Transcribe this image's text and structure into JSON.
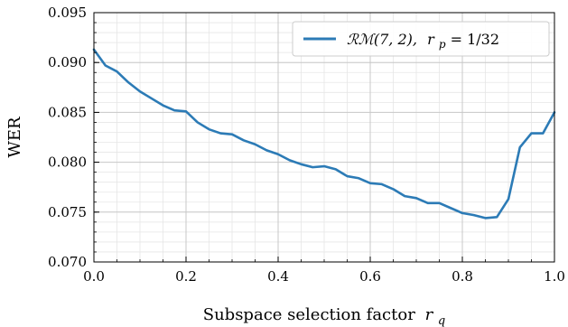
{
  "chart_data": {
    "type": "line",
    "title": "",
    "xlabel": "Subspace selection factor",
    "xlabel_var": "r",
    "xlabel_sub": "q",
    "ylabel": "WER",
    "xlim": [
      0.0,
      1.0
    ],
    "ylim": [
      0.07,
      0.095
    ],
    "xticks": [
      0.0,
      0.2,
      0.4,
      0.6,
      0.8,
      1.0
    ],
    "xtick_labels": [
      "0.0",
      "0.2",
      "0.4",
      "0.6",
      "0.8",
      "1.0"
    ],
    "yticks": [
      0.07,
      0.075,
      0.08,
      0.085,
      0.09,
      0.095
    ],
    "ytick_labels": [
      "0.070",
      "0.075",
      "0.080",
      "0.085",
      "0.090",
      "0.095"
    ],
    "grid": true,
    "minor_grid": true,
    "legend_position": "top-right",
    "series": [
      {
        "name_main": "ℛℳ(7, 2),",
        "name_var": "r",
        "name_sub": "p",
        "name_tail": " = 1/32",
        "color": "#2c7bb6",
        "x": [
          0.0,
          0.025,
          0.05,
          0.075,
          0.1,
          0.125,
          0.15,
          0.175,
          0.2,
          0.225,
          0.25,
          0.275,
          0.3,
          0.325,
          0.35,
          0.375,
          0.4,
          0.425,
          0.45,
          0.475,
          0.5,
          0.525,
          0.55,
          0.575,
          0.6,
          0.625,
          0.65,
          0.675,
          0.7,
          0.725,
          0.75,
          0.775,
          0.8,
          0.825,
          0.85,
          0.875,
          0.9,
          0.925,
          0.95,
          0.975,
          1.0
        ],
        "y": [
          0.0913,
          0.0897,
          0.0891,
          0.088,
          0.0871,
          0.0864,
          0.0857,
          0.0852,
          0.0851,
          0.084,
          0.0833,
          0.0829,
          0.0828,
          0.0822,
          0.0818,
          0.0812,
          0.0808,
          0.0802,
          0.0798,
          0.0795,
          0.0796,
          0.0793,
          0.0786,
          0.0784,
          0.0779,
          0.0778,
          0.0773,
          0.0766,
          0.0764,
          0.0759,
          0.0759,
          0.0754,
          0.0749,
          0.0747,
          0.0744,
          0.0745,
          0.0763,
          0.0815,
          0.0829,
          0.0829,
          0.085
        ]
      }
    ]
  }
}
